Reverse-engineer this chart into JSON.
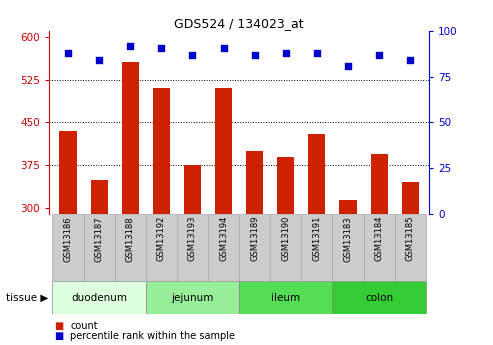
{
  "title": "GDS524 / 134023_at",
  "samples": [
    "GSM13186",
    "GSM13187",
    "GSM13188",
    "GSM13192",
    "GSM13193",
    "GSM13194",
    "GSM13189",
    "GSM13190",
    "GSM13191",
    "GSM13183",
    "GSM13184",
    "GSM13185"
  ],
  "counts": [
    435,
    350,
    555,
    510,
    375,
    510,
    400,
    390,
    430,
    315,
    395,
    345
  ],
  "percentile_ranks": [
    88,
    84,
    92,
    91,
    87,
    91,
    87,
    88,
    88,
    81,
    87,
    84
  ],
  "ylim_left": [
    290,
    610
  ],
  "ylim_right": [
    0,
    100
  ],
  "yticks_left": [
    300,
    375,
    450,
    525,
    600
  ],
  "yticks_right": [
    0,
    25,
    50,
    75,
    100
  ],
  "bar_color": "#cc2200",
  "dot_color": "#0000cc",
  "groups": [
    {
      "label": "duodenum",
      "start": 0,
      "end": 3,
      "color": "#ddffdd"
    },
    {
      "label": "jejunum",
      "start": 3,
      "end": 6,
      "color": "#99ee99"
    },
    {
      "label": "ileum",
      "start": 6,
      "end": 9,
      "color": "#55dd55"
    },
    {
      "label": "colon",
      "start": 9,
      "end": 12,
      "color": "#33cc33"
    }
  ],
  "xlabel_color": "#cc0000",
  "right_axis_color": "#0000cc",
  "grid_color": "#000000",
  "legend_count_color": "#cc2200",
  "legend_pct_color": "#0000cc",
  "tissue_label": "tissue",
  "legend_count_label": "count",
  "legend_pct_label": "percentile rank within the sample",
  "sample_box_color": "#cccccc",
  "bar_base": 290
}
